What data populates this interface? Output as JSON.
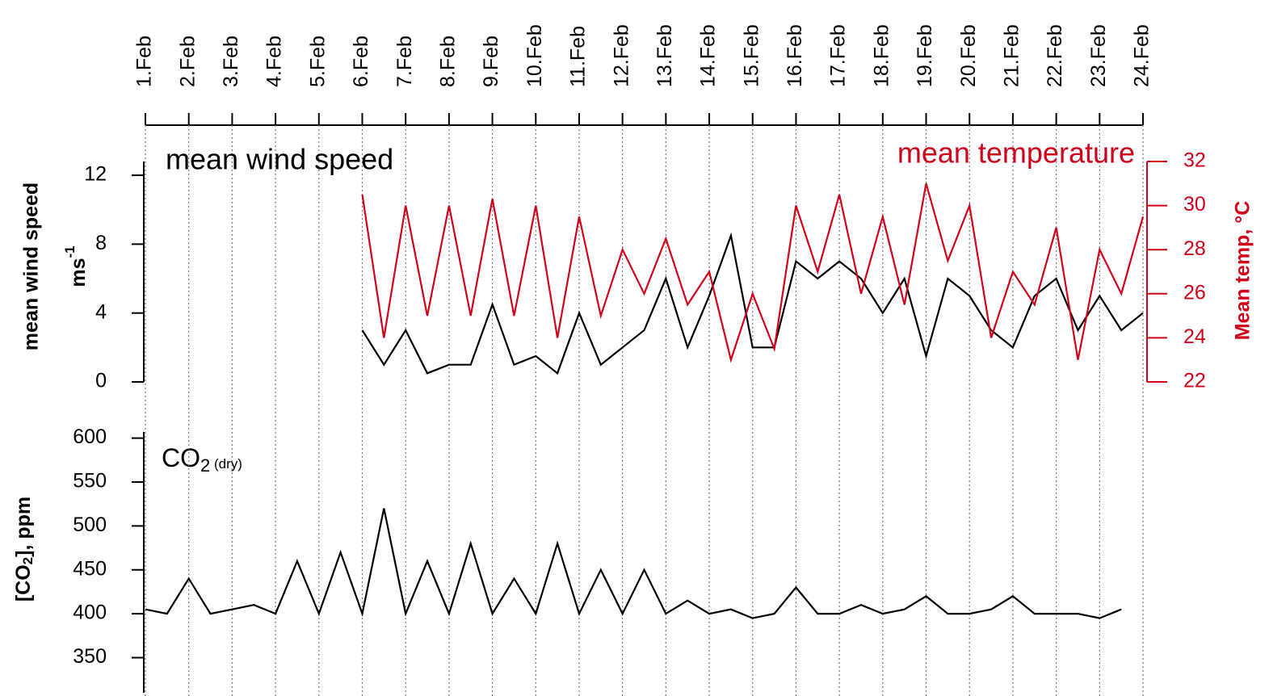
{
  "chart_data": [
    {
      "type": "line",
      "xlim": [
        1,
        24
      ],
      "xticks": [
        {
          "value": 1,
          "label": "1.Feb"
        },
        {
          "value": 2,
          "label": "2.Feb"
        },
        {
          "value": 3,
          "label": "3.Feb"
        },
        {
          "value": 4,
          "label": "4.Feb"
        },
        {
          "value": 5,
          "label": "5.Feb"
        },
        {
          "value": 6,
          "label": "6.Feb"
        },
        {
          "value": 7,
          "label": "7.Feb"
        },
        {
          "value": 8,
          "label": "8.Feb"
        },
        {
          "value": 9,
          "label": "9.Feb"
        },
        {
          "value": 10,
          "label": "10.Feb"
        },
        {
          "value": 11,
          "label": "11.Feb"
        },
        {
          "value": 12,
          "label": "12.Feb"
        },
        {
          "value": 13,
          "label": "13.Feb"
        },
        {
          "value": 14,
          "label": "14.Feb"
        },
        {
          "value": 15,
          "label": "15.Feb"
        },
        {
          "value": 16,
          "label": "16.Feb"
        },
        {
          "value": 17,
          "label": "17.Feb"
        },
        {
          "value": 18,
          "label": "18.Feb"
        },
        {
          "value": 19,
          "label": "19.Feb"
        },
        {
          "value": 20,
          "label": "20.Feb"
        },
        {
          "value": 21,
          "label": "21.Feb"
        },
        {
          "value": 22,
          "label": "22.Feb"
        },
        {
          "value": 23,
          "label": "23.Feb"
        },
        {
          "value": 24,
          "label": "24.Feb"
        }
      ],
      "grid": true,
      "ylabel": "mean wind speed",
      "ylabel2": [
        "ms",
        "-1"
      ],
      "y2label": "Mean temp, °C",
      "ylim": [
        0,
        12.8
      ],
      "yticks": [
        0,
        4,
        8,
        12
      ],
      "y2lim": [
        22,
        32
      ],
      "y2ticks": [
        22,
        24,
        26,
        28,
        30,
        32
      ],
      "x": [
        6,
        6.5,
        7,
        7.5,
        8,
        8.5,
        9,
        9.5,
        10,
        10.5,
        11,
        11.5,
        12,
        12.5,
        13,
        13.5,
        14,
        14.5,
        15,
        15.5,
        16,
        16.5,
        17,
        17.5,
        18,
        18.5,
        19,
        19.5,
        20,
        20.5,
        21,
        21.5,
        22,
        22.5,
        23,
        23.5,
        24
      ],
      "series": [
        {
          "name": "mean wind speed",
          "color": "#000000",
          "values": [
            3,
            1,
            3,
            0.5,
            1,
            1,
            4.5,
            1,
            1.5,
            0.5,
            4,
            1,
            2,
            3,
            6,
            2,
            5,
            8.5,
            2,
            2,
            7,
            6,
            7,
            6,
            4,
            6,
            1.5,
            6,
            5,
            3,
            2,
            5,
            6,
            3,
            5,
            3,
            4
          ]
        },
        {
          "name": "mean temperature",
          "color": "#d0021b",
          "axis": "y2",
          "values": [
            30.5,
            24,
            30,
            25,
            30,
            25,
            30.3,
            25,
            30,
            24,
            29.5,
            25,
            28,
            26,
            28.5,
            25.5,
            27,
            23,
            26,
            23.5,
            30,
            27,
            30.5,
            26,
            29.5,
            25.5,
            31,
            27.5,
            30,
            24,
            27,
            25.5,
            29,
            23,
            28,
            26,
            29.5
          ]
        }
      ]
    },
    {
      "type": "line",
      "xlim": [
        1,
        24
      ],
      "ylabel": [
        "[CO",
        "2",
        "], ppm"
      ],
      "annotation": [
        "CO",
        "2",
        " (dry)"
      ],
      "ylim": [
        310,
        607
      ],
      "yticks": [
        350,
        400,
        450,
        500,
        550,
        600
      ],
      "x": [
        1,
        1.5,
        2,
        2.5,
        3,
        3.5,
        4,
        4.5,
        5,
        5.5,
        6,
        6.5,
        7,
        7.5,
        8,
        8.5,
        9,
        9.5,
        10,
        10.5,
        11,
        11.5,
        12,
        12.5,
        13,
        13.5,
        14,
        14.5,
        15,
        15.5,
        16,
        16.5,
        17,
        17.5,
        18,
        18.5,
        19,
        19.5,
        20,
        20.5,
        21,
        21.5,
        22,
        22.5,
        23,
        23.5
      ],
      "series": [
        {
          "color": "#000000",
          "values": [
            405,
            400,
            440,
            400,
            405,
            410,
            400,
            460,
            400,
            470,
            400,
            520,
            400,
            460,
            400,
            480,
            400,
            440,
            400,
            480,
            400,
            450,
            400,
            450,
            400,
            415,
            400,
            405,
            395,
            400,
            430,
            400,
            400,
            410,
            400,
            405,
            420,
            400,
            400,
            405,
            420,
            400,
            400,
            400,
            395,
            405
          ]
        }
      ]
    }
  ]
}
